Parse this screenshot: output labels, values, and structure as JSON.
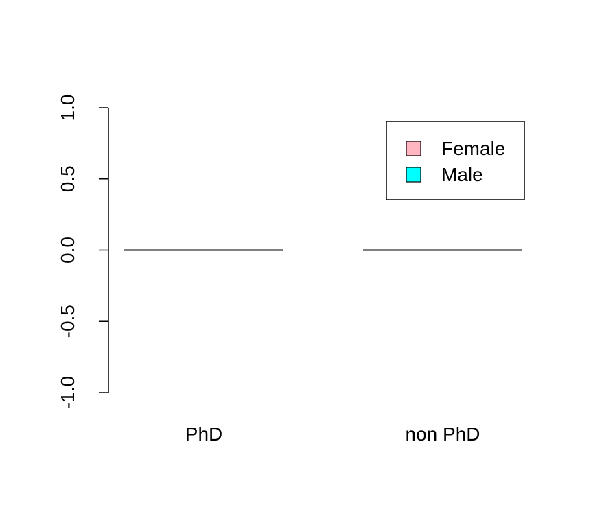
{
  "chart_data": {
    "type": "bar",
    "title": "",
    "xlabel": "",
    "ylabel": "",
    "categories": [
      "PhD",
      "non PhD"
    ],
    "series": [
      {
        "name": "Female",
        "color": "#FFB6C1",
        "values": [
          0,
          0
        ]
      },
      {
        "name": "Male",
        "color": "#00FFFF",
        "values": [
          0,
          0
        ]
      }
    ],
    "ylim": [
      -1.0,
      1.0
    ],
    "yticks": [
      -1.0,
      -0.5,
      0.0,
      0.5,
      1.0
    ],
    "ytick_labels": [
      "-1.0",
      "-0.5",
      "0.0",
      "0.5",
      "1.0"
    ],
    "grid": false,
    "legend": {
      "position": "top-right",
      "entries": [
        "Female",
        "Male"
      ]
    }
  }
}
